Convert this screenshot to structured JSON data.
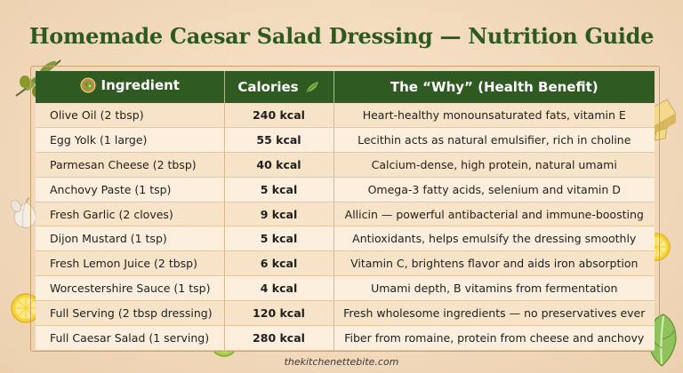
{
  "title": "Homemade Caesar Salad Dressing — Nutrition Guide",
  "columns": {
    "ingredient": "Ingredient",
    "calories": "Calories",
    "why": "The “Why” (Health Benefit)"
  },
  "rows": [
    {
      "ingredient": "Olive Oil (2 tbsp)",
      "calories": "240 kcal",
      "why": "Heart-healthy monounsaturated fats, vitamin E"
    },
    {
      "ingredient": "Egg Yolk (1 large)",
      "calories": "55 kcal",
      "why": "Lecithin acts as natural emulsifier, rich in choline"
    },
    {
      "ingredient": "Parmesan Cheese (2 tbsp)",
      "calories": "40 kcal",
      "why": "Calcium-dense, high protein, natural umami"
    },
    {
      "ingredient": "Anchovy Paste (1 tsp)",
      "calories": "5 kcal",
      "why": "Omega-3 fatty acids, selenium and vitamin D"
    },
    {
      "ingredient": "Fresh Garlic (2 cloves)",
      "calories": "9 kcal",
      "why": "Allicin — powerful antibacterial and immune-boosting"
    },
    {
      "ingredient": "Dijon Mustard (1 tsp)",
      "calories": "5 kcal",
      "why": "Antioxidants, helps emulsify the dressing smoothly"
    },
    {
      "ingredient": "Fresh Lemon Juice (2 tbsp)",
      "calories": "6 kcal",
      "why": "Vitamin C, brightens flavor and aids iron absorption"
    },
    {
      "ingredient": "Worcestershire Sauce (1 tsp)",
      "calories": "4 kcal",
      "why": "Umami depth, B vitamins from fermentation"
    },
    {
      "ingredient": "Full Serving (2 tbsp dressing)",
      "calories": "120 kcal",
      "why": "Fresh wholesome ingredients — no preservatives ever"
    },
    {
      "ingredient": "Full Caesar Salad (1 serving)",
      "calories": "280 kcal",
      "why": "Fiber from romaine, protein from cheese and anchovy"
    }
  ],
  "footer": "thekitchenettebite.com",
  "icons": {
    "ingredient_header": "salad-bowl-icon",
    "calories_header": "herb-leaf-icon"
  },
  "colors": {
    "header_bg": "#2f5a22",
    "title": "#2d5a1f",
    "row_odd": "#f7e3c8",
    "row_even": "#fbeedc"
  }
}
